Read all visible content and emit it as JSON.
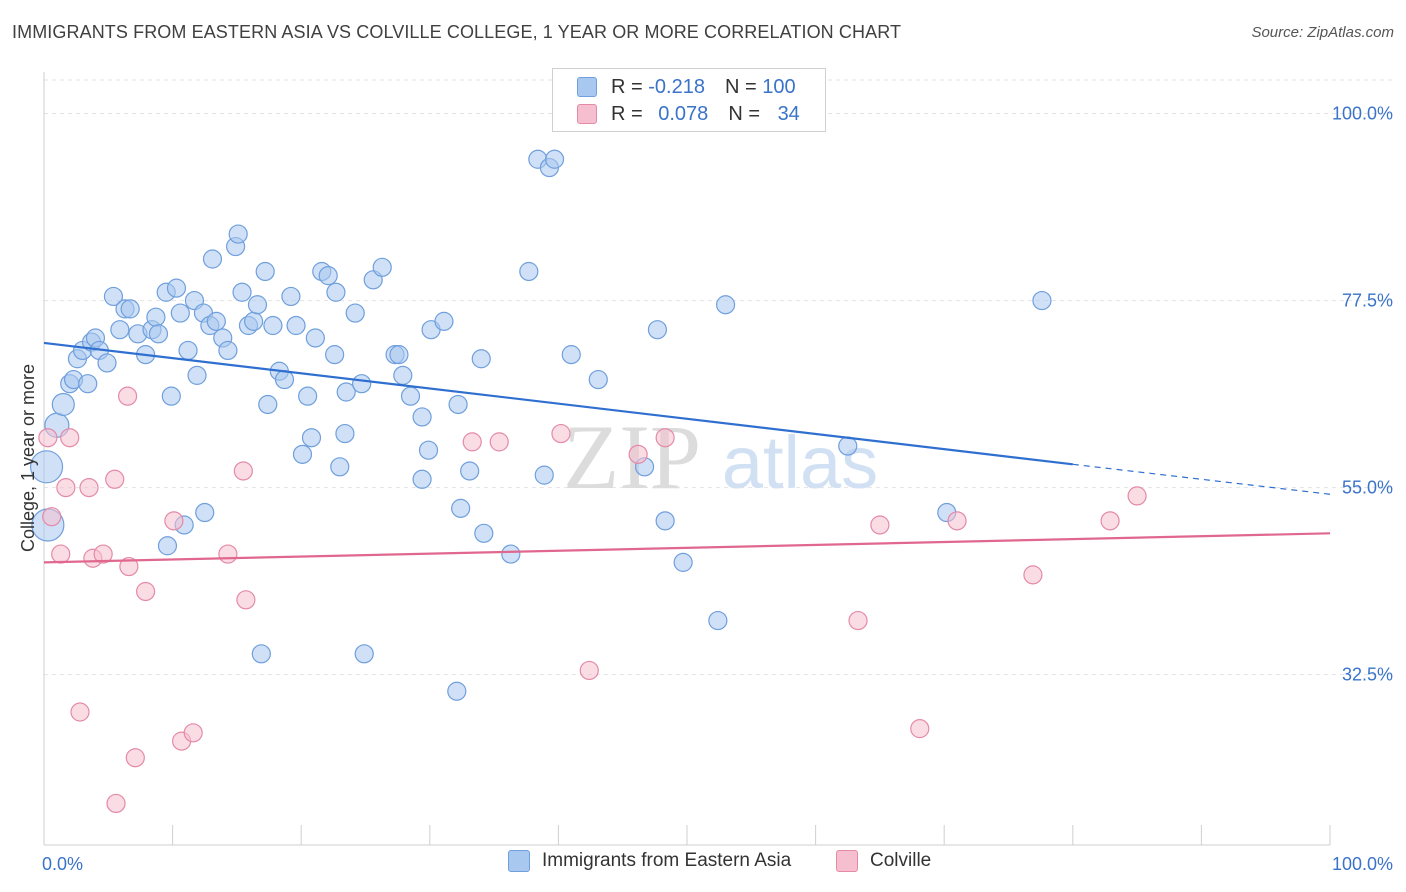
{
  "header": {
    "title": "IMMIGRANTS FROM EASTERN ASIA VS COLVILLE COLLEGE, 1 YEAR OR MORE CORRELATION CHART",
    "source": "Source: ZipAtlas.com"
  },
  "watermark": {
    "zip": "ZIP",
    "atlas": "atlas"
  },
  "legend": {
    "rows": [
      {
        "r_label": "R =",
        "r_value": "-0.218",
        "n_label": "N =",
        "n_value": "100",
        "color": "#a9c8f0",
        "border": "#6f9fdc"
      },
      {
        "r_label": "R =",
        "r_value": "0.078",
        "n_label": "N =",
        "n_value": "34",
        "color": "#f6bfd0",
        "border": "#e48aa8"
      }
    ]
  },
  "chart_data": {
    "type": "scatter",
    "title": "IMMIGRANTS FROM EASTERN ASIA VS COLVILLE COLLEGE, 1 YEAR OR MORE CORRELATION CHART",
    "xlabel": "",
    "ylabel": "College, 1 year or more",
    "xlim": [
      0,
      100
    ],
    "ylim": [
      12,
      105
    ],
    "x_tick_labels": [
      "0.0%",
      "100.0%"
    ],
    "y_ticks": [
      32.5,
      55.0,
      77.5,
      100.0
    ],
    "y_tick_labels": [
      "32.5%",
      "55.0%",
      "77.5%",
      "100.0%"
    ],
    "grid": true,
    "legend_position": "top-center",
    "series": [
      {
        "name": "Immigrants from Eastern Asia",
        "color": "#a9c8f0",
        "stroke": "#6f9fdc",
        "trend": {
          "x0": 0,
          "y0": 72.4,
          "x1": 80,
          "y1": 57.8,
          "x2": 100,
          "y2": 54.2,
          "color": "#2f6fd0"
        },
        "points": [
          {
            "x": 0.2,
            "y": 57.5,
            "s": 16
          },
          {
            "x": 0.3,
            "y": 50.5,
            "s": 16
          },
          {
            "x": 1,
            "y": 62.5,
            "s": 12
          },
          {
            "x": 1.5,
            "y": 65.0,
            "s": 11
          },
          {
            "x": 2,
            "y": 67.5,
            "s": 9
          },
          {
            "x": 2.3,
            "y": 68.0,
            "s": 9
          },
          {
            "x": 2.6,
            "y": 70.5,
            "s": 9
          },
          {
            "x": 3,
            "y": 71.5,
            "s": 9
          },
          {
            "x": 3.4,
            "y": 67.5,
            "s": 9
          },
          {
            "x": 3.7,
            "y": 72.5,
            "s": 9
          },
          {
            "x": 4.0,
            "y": 73.0,
            "s": 9
          },
          {
            "x": 4.3,
            "y": 71.5,
            "s": 9
          },
          {
            "x": 4.9,
            "y": 70.0,
            "s": 9
          },
          {
            "x": 5.4,
            "y": 78.0,
            "s": 9
          },
          {
            "x": 5.9,
            "y": 74.0,
            "s": 9
          },
          {
            "x": 6.3,
            "y": 76.5,
            "s": 9
          },
          {
            "x": 6.7,
            "y": 76.5,
            "s": 9
          },
          {
            "x": 7.3,
            "y": 73.5,
            "s": 9
          },
          {
            "x": 7.9,
            "y": 71.0,
            "s": 9
          },
          {
            "x": 8.4,
            "y": 74.0,
            "s": 9
          },
          {
            "x": 8.7,
            "y": 75.5,
            "s": 9
          },
          {
            "x": 8.9,
            "y": 73.5,
            "s": 9
          },
          {
            "x": 9.5,
            "y": 78.5,
            "s": 9
          },
          {
            "x": 9.9,
            "y": 66.0,
            "s": 9
          },
          {
            "x": 10.3,
            "y": 79.0,
            "s": 9
          },
          {
            "x": 10.6,
            "y": 76.0,
            "s": 9
          },
          {
            "x": 11.2,
            "y": 71.5,
            "s": 9
          },
          {
            "x": 11.7,
            "y": 77.5,
            "s": 9
          },
          {
            "x": 11.9,
            "y": 68.5,
            "s": 9
          },
          {
            "x": 12.4,
            "y": 76.0,
            "s": 9
          },
          {
            "x": 12.9,
            "y": 74.5,
            "s": 9
          },
          {
            "x": 13.1,
            "y": 82.5,
            "s": 9
          },
          {
            "x": 13.4,
            "y": 75.0,
            "s": 9
          },
          {
            "x": 13.9,
            "y": 73.0,
            "s": 9
          },
          {
            "x": 14.3,
            "y": 71.5,
            "s": 9
          },
          {
            "x": 14.9,
            "y": 84.0,
            "s": 9
          },
          {
            "x": 15.1,
            "y": 85.5,
            "s": 9
          },
          {
            "x": 15.4,
            "y": 78.5,
            "s": 9
          },
          {
            "x": 15.9,
            "y": 74.5,
            "s": 9
          },
          {
            "x": 16.3,
            "y": 75.0,
            "s": 9
          },
          {
            "x": 16.6,
            "y": 77.0,
            "s": 9
          },
          {
            "x": 17.2,
            "y": 81.0,
            "s": 9
          },
          {
            "x": 17.4,
            "y": 65.0,
            "s": 9
          },
          {
            "x": 17.8,
            "y": 74.5,
            "s": 9
          },
          {
            "x": 18.3,
            "y": 69.0,
            "s": 9
          },
          {
            "x": 18.7,
            "y": 68.0,
            "s": 9
          },
          {
            "x": 19.2,
            "y": 78.0,
            "s": 9
          },
          {
            "x": 19.6,
            "y": 74.5,
            "s": 9
          },
          {
            "x": 20.1,
            "y": 59.0,
            "s": 9
          },
          {
            "x": 20.5,
            "y": 66.0,
            "s": 9
          },
          {
            "x": 20.8,
            "y": 61.0,
            "s": 9
          },
          {
            "x": 21.1,
            "y": 73.0,
            "s": 9
          },
          {
            "x": 21.6,
            "y": 81.0,
            "s": 9
          },
          {
            "x": 22.1,
            "y": 80.5,
            "s": 9
          },
          {
            "x": 22.6,
            "y": 71.0,
            "s": 9
          },
          {
            "x": 22.7,
            "y": 78.5,
            "s": 9
          },
          {
            "x": 23.0,
            "y": 57.5,
            "s": 9
          },
          {
            "x": 23.4,
            "y": 61.5,
            "s": 9
          },
          {
            "x": 23.5,
            "y": 66.5,
            "s": 9
          },
          {
            "x": 24.2,
            "y": 76.0,
            "s": 9
          },
          {
            "x": 24.7,
            "y": 67.5,
            "s": 9
          },
          {
            "x": 25.6,
            "y": 80.0,
            "s": 9
          },
          {
            "x": 26.3,
            "y": 81.5,
            "s": 9
          },
          {
            "x": 27.3,
            "y": 71.0,
            "s": 9
          },
          {
            "x": 27.6,
            "y": 71.0,
            "s": 9
          },
          {
            "x": 27.9,
            "y": 68.5,
            "s": 9
          },
          {
            "x": 28.5,
            "y": 66.0,
            "s": 9
          },
          {
            "x": 29.4,
            "y": 63.5,
            "s": 9
          },
          {
            "x": 29.4,
            "y": 56.0,
            "s": 9
          },
          {
            "x": 29.9,
            "y": 59.5,
            "s": 9
          },
          {
            "x": 30.1,
            "y": 74.0,
            "s": 9
          },
          {
            "x": 31.1,
            "y": 75.0,
            "s": 9
          },
          {
            "x": 32.2,
            "y": 65.0,
            "s": 9
          },
          {
            "x": 32.4,
            "y": 52.5,
            "s": 9
          },
          {
            "x": 33.1,
            "y": 57.0,
            "s": 9
          },
          {
            "x": 34.0,
            "y": 70.5,
            "s": 9
          },
          {
            "x": 34.2,
            "y": 49.5,
            "s": 9
          },
          {
            "x": 36.3,
            "y": 47.0,
            "s": 9
          },
          {
            "x": 37.7,
            "y": 81.0,
            "s": 9
          },
          {
            "x": 38.4,
            "y": 94.5,
            "s": 9
          },
          {
            "x": 38.9,
            "y": 56.5,
            "s": 9
          },
          {
            "x": 39.3,
            "y": 93.5,
            "s": 9
          },
          {
            "x": 39.7,
            "y": 94.5,
            "s": 9
          },
          {
            "x": 41.0,
            "y": 71.0,
            "s": 9
          },
          {
            "x": 43.1,
            "y": 68.0,
            "s": 9
          },
          {
            "x": 46.7,
            "y": 57.5,
            "s": 9
          },
          {
            "x": 47.7,
            "y": 74.0,
            "s": 9
          },
          {
            "x": 48.3,
            "y": 51.0,
            "s": 9
          },
          {
            "x": 49.7,
            "y": 46.0,
            "s": 9
          },
          {
            "x": 52.4,
            "y": 39.0,
            "s": 9
          },
          {
            "x": 53.0,
            "y": 77.0,
            "s": 9
          },
          {
            "x": 62.5,
            "y": 60.0,
            "s": 9
          },
          {
            "x": 70.2,
            "y": 52.0,
            "s": 9
          },
          {
            "x": 77.6,
            "y": 77.5,
            "s": 9
          },
          {
            "x": 16.9,
            "y": 35.0,
            "s": 9
          },
          {
            "x": 24.9,
            "y": 35.0,
            "s": 9
          },
          {
            "x": 32.1,
            "y": 30.5,
            "s": 9
          },
          {
            "x": 10.9,
            "y": 50.5,
            "s": 9
          },
          {
            "x": 9.6,
            "y": 48.0,
            "s": 9
          },
          {
            "x": 12.5,
            "y": 52.0,
            "s": 9
          }
        ]
      },
      {
        "name": "Colville",
        "color": "#f6bfd0",
        "stroke": "#e48aa8",
        "trend": {
          "x0": 0,
          "y0": 46.0,
          "x1": 100,
          "y1": 49.5,
          "color": "#e0678e"
        },
        "points": [
          {
            "x": 0.3,
            "y": 61.0,
            "s": 9
          },
          {
            "x": 0.6,
            "y": 51.5,
            "s": 9
          },
          {
            "x": 1.3,
            "y": 47.0,
            "s": 9
          },
          {
            "x": 1.7,
            "y": 55.0,
            "s": 9
          },
          {
            "x": 2.0,
            "y": 61.0,
            "s": 9
          },
          {
            "x": 2.8,
            "y": 28.0,
            "s": 9
          },
          {
            "x": 3.5,
            "y": 55.0,
            "s": 9
          },
          {
            "x": 3.8,
            "y": 46.5,
            "s": 9
          },
          {
            "x": 4.6,
            "y": 47.0,
            "s": 9
          },
          {
            "x": 5.5,
            "y": 56.0,
            "s": 9
          },
          {
            "x": 5.6,
            "y": 17.0,
            "s": 9
          },
          {
            "x": 6.5,
            "y": 66.0,
            "s": 9
          },
          {
            "x": 6.6,
            "y": 45.5,
            "s": 9
          },
          {
            "x": 7.1,
            "y": 22.5,
            "s": 9
          },
          {
            "x": 7.9,
            "y": 42.5,
            "s": 9
          },
          {
            "x": 10.1,
            "y": 51.0,
            "s": 9
          },
          {
            "x": 10.7,
            "y": 24.5,
            "s": 9
          },
          {
            "x": 11.6,
            "y": 25.5,
            "s": 9
          },
          {
            "x": 14.3,
            "y": 47.0,
            "s": 9
          },
          {
            "x": 15.5,
            "y": 57.0,
            "s": 9
          },
          {
            "x": 15.7,
            "y": 41.5,
            "s": 9
          },
          {
            "x": 33.3,
            "y": 60.5,
            "s": 9
          },
          {
            "x": 35.4,
            "y": 60.5,
            "s": 9
          },
          {
            "x": 40.2,
            "y": 61.5,
            "s": 9
          },
          {
            "x": 42.4,
            "y": 33.0,
            "s": 9
          },
          {
            "x": 46.2,
            "y": 59.0,
            "s": 9
          },
          {
            "x": 48.3,
            "y": 61.0,
            "s": 9
          },
          {
            "x": 63.3,
            "y": 39.0,
            "s": 9
          },
          {
            "x": 65.0,
            "y": 50.5,
            "s": 9
          },
          {
            "x": 68.1,
            "y": 26.0,
            "s": 9
          },
          {
            "x": 71.0,
            "y": 51.0,
            "s": 9
          },
          {
            "x": 76.9,
            "y": 44.5,
            "s": 9
          },
          {
            "x": 82.9,
            "y": 51.0,
            "s": 9
          },
          {
            "x": 85.0,
            "y": 54.0,
            "s": 9
          }
        ]
      }
    ]
  },
  "bottom_legend": {
    "items": [
      {
        "label": "Immigrants from Eastern Asia",
        "color": "#a9c8f0",
        "border": "#6f9fdc"
      },
      {
        "label": "Colville",
        "color": "#f6bfd0",
        "border": "#e48aa8"
      }
    ]
  }
}
